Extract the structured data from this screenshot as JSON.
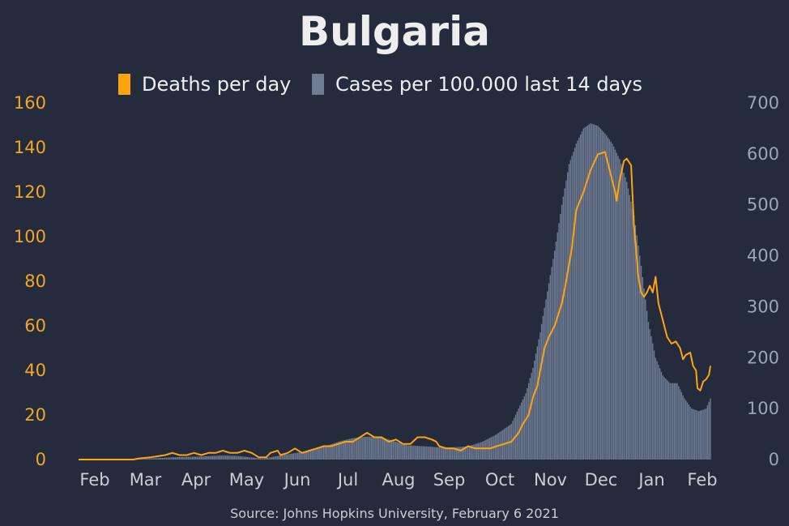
{
  "colors": {
    "background": "#232b3c",
    "deaths": "#ffa30f",
    "cases": "#6f7c94",
    "text": "#eeeeee",
    "left_tick": "#f5a623",
    "right_tick": "#9aa6bb",
    "x_tick": "#c9cdd4"
  },
  "chart_data": {
    "type": "bar",
    "title": "Bulgaria",
    "source": "Source: Johns Hopkins University, February 6 2021",
    "x_ticks": [
      "Feb",
      "Mar",
      "Apr",
      "May",
      "Jun",
      "Jul",
      "Aug",
      "Sep",
      "Oct",
      "Nov",
      "Dec",
      "Jan",
      "Feb"
    ],
    "left_axis": {
      "ticks": [
        "0",
        "20",
        "40",
        "60",
        "80",
        "100",
        "120",
        "140",
        "160"
      ],
      "ylim": [
        0,
        160
      ]
    },
    "right_axis": {
      "ticks": [
        "0",
        "100",
        "200",
        "300",
        "400",
        "500",
        "600",
        "700"
      ],
      "ylim": [
        0,
        700
      ]
    },
    "series": [
      {
        "name": "Deaths per day",
        "type": "line",
        "axis": "left",
        "color_key": "deaths",
        "points": [
          [
            0,
            0
          ],
          [
            38,
            0
          ],
          [
            42,
            0.5
          ],
          [
            50,
            1
          ],
          [
            60,
            2
          ],
          [
            65,
            3
          ],
          [
            70,
            2
          ],
          [
            75,
            2
          ],
          [
            80,
            3
          ],
          [
            85,
            2
          ],
          [
            90,
            3
          ],
          [
            95,
            3
          ],
          [
            100,
            4
          ],
          [
            105,
            3
          ],
          [
            110,
            3
          ],
          [
            115,
            4
          ],
          [
            120,
            3
          ],
          [
            125,
            1
          ],
          [
            130,
            1
          ],
          [
            133,
            3
          ],
          [
            138,
            4
          ],
          [
            140,
            2
          ],
          [
            145,
            3
          ],
          [
            150,
            5
          ],
          [
            155,
            3
          ],
          [
            160,
            4
          ],
          [
            165,
            5
          ],
          [
            170,
            6
          ],
          [
            175,
            6
          ],
          [
            180,
            7
          ],
          [
            185,
            8
          ],
          [
            190,
            8
          ],
          [
            195,
            10
          ],
          [
            200,
            12
          ],
          [
            205,
            10
          ],
          [
            210,
            10
          ],
          [
            215,
            8
          ],
          [
            220,
            9
          ],
          [
            225,
            7
          ],
          [
            230,
            7
          ],
          [
            235,
            10
          ],
          [
            240,
            10
          ],
          [
            245,
            9
          ],
          [
            248,
            8
          ],
          [
            250,
            6
          ],
          [
            255,
            5
          ],
          [
            260,
            5
          ],
          [
            265,
            4
          ],
          [
            270,
            6
          ],
          [
            275,
            5
          ],
          [
            280,
            5
          ],
          [
            285,
            5
          ],
          [
            290,
            6
          ],
          [
            295,
            7
          ],
          [
            300,
            8
          ],
          [
            305,
            12
          ],
          [
            308,
            16
          ],
          [
            312,
            20
          ],
          [
            315,
            28
          ],
          [
            318,
            33
          ],
          [
            320,
            40
          ],
          [
            323,
            50
          ],
          [
            326,
            55
          ],
          [
            330,
            60
          ],
          [
            335,
            70
          ],
          [
            338,
            80
          ],
          [
            342,
            95
          ],
          [
            345,
            112
          ],
          [
            350,
            120
          ],
          [
            355,
            130
          ],
          [
            360,
            137
          ],
          [
            365,
            138
          ],
          [
            370,
            125
          ],
          [
            372,
            120
          ],
          [
            373,
            116
          ],
          [
            375,
            125
          ],
          [
            378,
            134
          ],
          [
            380,
            135
          ],
          [
            383,
            132
          ],
          [
            385,
            105
          ],
          [
            388,
            82
          ],
          [
            390,
            75
          ],
          [
            392,
            73
          ],
          [
            394,
            75
          ],
          [
            396,
            78
          ],
          [
            398,
            75
          ],
          [
            400,
            82
          ],
          [
            402,
            70
          ],
          [
            404,
            65
          ],
          [
            406,
            60
          ],
          [
            408,
            55
          ],
          [
            411,
            52
          ],
          [
            414,
            53
          ],
          [
            417,
            50
          ],
          [
            419,
            45
          ],
          [
            421,
            47
          ],
          [
            424,
            48
          ],
          [
            426,
            42
          ],
          [
            428,
            40
          ],
          [
            429,
            32
          ],
          [
            431,
            31
          ],
          [
            433,
            35
          ],
          [
            435,
            36
          ],
          [
            437,
            38
          ],
          [
            438,
            42
          ]
        ]
      },
      {
        "name": "Cases per 100.000 last 14 days",
        "type": "bar",
        "axis": "right",
        "color_key": "cases",
        "points": [
          [
            0,
            0
          ],
          [
            30,
            0
          ],
          [
            40,
            0.5
          ],
          [
            55,
            3
          ],
          [
            70,
            5
          ],
          [
            85,
            6
          ],
          [
            100,
            8
          ],
          [
            110,
            7
          ],
          [
            120,
            4
          ],
          [
            128,
            2
          ],
          [
            140,
            8
          ],
          [
            155,
            15
          ],
          [
            170,
            25
          ],
          [
            180,
            35
          ],
          [
            190,
            42
          ],
          [
            200,
            45
          ],
          [
            212,
            42
          ],
          [
            220,
            35
          ],
          [
            228,
            28
          ],
          [
            240,
            26
          ],
          [
            250,
            24
          ],
          [
            260,
            24
          ],
          [
            270,
            26
          ],
          [
            280,
            35
          ],
          [
            290,
            50
          ],
          [
            300,
            70
          ],
          [
            305,
            100
          ],
          [
            310,
            130
          ],
          [
            315,
            180
          ],
          [
            320,
            250
          ],
          [
            325,
            330
          ],
          [
            330,
            410
          ],
          [
            335,
            500
          ],
          [
            340,
            580
          ],
          [
            345,
            620
          ],
          [
            350,
            650
          ],
          [
            355,
            660
          ],
          [
            360,
            655
          ],
          [
            365,
            640
          ],
          [
            370,
            620
          ],
          [
            375,
            590
          ],
          [
            380,
            545
          ],
          [
            385,
            480
          ],
          [
            390,
            380
          ],
          [
            395,
            270
          ],
          [
            400,
            200
          ],
          [
            405,
            165
          ],
          [
            410,
            150
          ],
          [
            415,
            150
          ],
          [
            420,
            120
          ],
          [
            425,
            100
          ],
          [
            430,
            95
          ],
          [
            435,
            100
          ],
          [
            438,
            120
          ]
        ]
      }
    ],
    "x_domain": [
      0,
      438
    ]
  }
}
